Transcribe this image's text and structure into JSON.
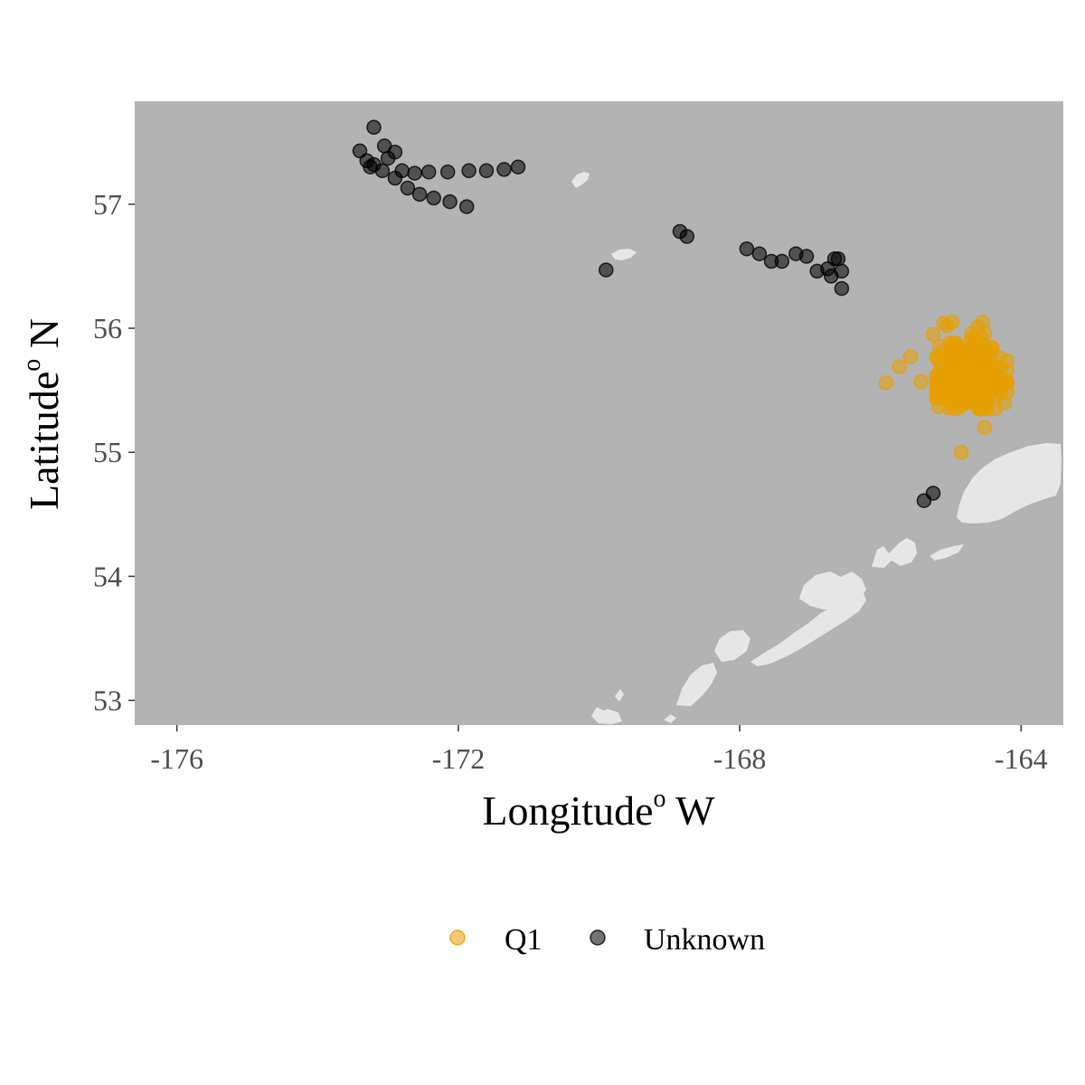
{
  "colors": {
    "panel_background": "#b3b3b3",
    "land": "#e6e6e6",
    "q1": "#e69f00",
    "unknown": "#000000"
  },
  "axes": {
    "x_title_main": "Longitude",
    "x_title_sup": "o",
    "x_title_tail": " W",
    "y_title_main": "Latitude",
    "y_title_sup": "o",
    "y_title_tail": " N"
  },
  "legend": {
    "placement": "bottom",
    "items": [
      {
        "label": "Q1",
        "color": "#e69f00"
      },
      {
        "label": "Unknown",
        "color": "#000000"
      }
    ]
  },
  "chart_data": {
    "type": "scatter",
    "xlabel": "Longitude° W",
    "ylabel": "Latitude° N",
    "xlim": [
      -176.6,
      -163.4
    ],
    "ylim": [
      52.8,
      57.83
    ],
    "x_ticks": [
      -176,
      -172,
      -168,
      -164
    ],
    "x_tick_labels": [
      "-176",
      "-172",
      "-168",
      "-164"
    ],
    "y_ticks": [
      53,
      54,
      55,
      56,
      57
    ],
    "y_tick_labels": [
      "53",
      "54",
      "55",
      "56",
      "57"
    ],
    "grid": false,
    "legend_position": "bottom",
    "series": [
      {
        "name": "Q1",
        "color": "#e69f00",
        "opacity": 0.55,
        "cluster": {
          "center": [
            -164.75,
            55.62
          ],
          "spread": [
            0.33,
            0.2
          ],
          "count": 260,
          "lon_range": [
            -165.2,
            -164.2
          ],
          "lat_range": [
            55.35,
            56.05
          ]
        },
        "x": [
          -165.92,
          -165.57,
          -165.73,
          -165.42,
          -164.85,
          -164.52,
          -165.1,
          -165.05,
          -164.98,
          -165.25,
          -164.3,
          -164.92
        ],
        "y": [
          55.56,
          55.77,
          55.69,
          55.57,
          55.0,
          55.2,
          56.04,
          56.02,
          56.05,
          55.95,
          55.68,
          55.4
        ]
      },
      {
        "name": "Unknown",
        "color": "#000000",
        "opacity": 0.55,
        "x": [
          -173.2,
          -173.4,
          -173.3,
          -173.2,
          -173.05,
          -172.9,
          -173.0,
          -172.8,
          -172.62,
          -172.42,
          -172.15,
          -171.85,
          -171.6,
          -171.35,
          -171.15,
          -173.25,
          -173.08,
          -172.9,
          -172.72,
          -172.55,
          -172.35,
          -172.12,
          -171.88,
          -169.9,
          -168.85,
          -168.75,
          -167.9,
          -167.72,
          -167.55,
          -167.4,
          -167.2,
          -167.05,
          -166.9,
          -166.75,
          -166.65,
          -166.6,
          -166.55,
          -166.7,
          -166.55,
          -165.38,
          -165.25
        ],
        "y": [
          57.62,
          57.43,
          57.35,
          57.32,
          57.47,
          57.42,
          57.37,
          57.27,
          57.25,
          57.26,
          57.26,
          57.27,
          57.27,
          57.28,
          57.3,
          57.3,
          57.27,
          57.21,
          57.13,
          57.08,
          57.05,
          57.02,
          56.98,
          56.47,
          56.78,
          56.74,
          56.64,
          56.6,
          56.54,
          56.54,
          56.6,
          56.58,
          56.46,
          56.48,
          56.56,
          56.56,
          56.46,
          56.42,
          56.32,
          54.61,
          54.67
        ]
      }
    ]
  }
}
